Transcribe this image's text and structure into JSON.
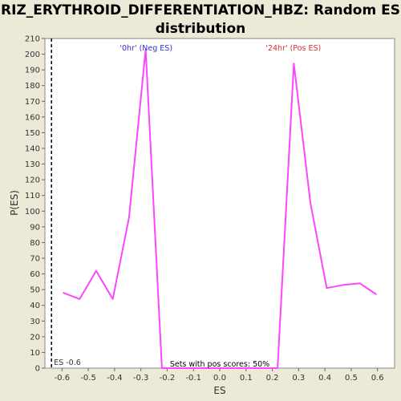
{
  "chart_data": {
    "type": "line",
    "title": "RIZ_ERYTHROID_DIFFERENTIATION_HBZ: Random ES distribution",
    "xlabel": "ES",
    "ylabel": "P(ES)",
    "xlim": [
      -0.665,
      0.665
    ],
    "ylim": [
      0,
      210
    ],
    "x_ticks": [
      "-0.6",
      "-0.5",
      "-0.4",
      "-0.3",
      "-0.2",
      "-0.1",
      "0.0",
      "0.1",
      "0.2",
      "0.3",
      "0.4",
      "0.5",
      "0.6"
    ],
    "y_ticks": [
      "0",
      "10",
      "20",
      "30",
      "40",
      "50",
      "60",
      "70",
      "80",
      "90",
      "100",
      "110",
      "120",
      "130",
      "140",
      "150",
      "160",
      "170",
      "180",
      "190",
      "200",
      "210"
    ],
    "grid": false,
    "line_color": "#ff44ff",
    "series": [
      {
        "x": [
          -0.595,
          -0.533,
          -0.47,
          -0.407,
          -0.345,
          -0.282,
          -0.22,
          -0.157,
          -0.094,
          -0.031,
          0.031,
          0.094,
          0.157,
          0.22,
          0.282,
          0.345,
          0.407,
          0.47,
          0.533,
          0.595
        ],
        "values": [
          48,
          44,
          62,
          44,
          96,
          203,
          0,
          0,
          0,
          0,
          0,
          0,
          0,
          0,
          194,
          105,
          51,
          53,
          54,
          47
        ]
      }
    ],
    "es_marker": {
      "x": -0.64,
      "label": "ES -0.6",
      "color": "#000000"
    },
    "annotations": {
      "neg": {
        "text": "'0hr' (Neg ES)",
        "x": -0.28,
        "color": "#3333cc"
      },
      "pos": {
        "text": "'24hr' (Pos ES)",
        "x": 0.28,
        "color": "#cc3333"
      },
      "bottom": {
        "text": "Sets with pos scores: 50%",
        "color": "#000000"
      }
    }
  }
}
